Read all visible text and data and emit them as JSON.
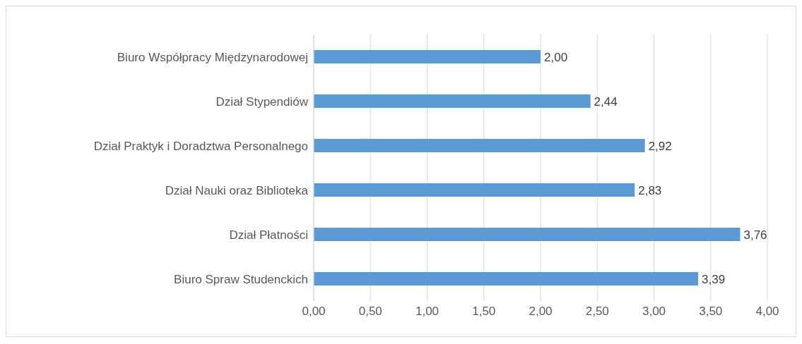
{
  "chart_data": {
    "type": "bar",
    "orientation": "horizontal",
    "categories": [
      "Biuro Współpracy Międzynarodowej",
      "Dział Stypendiów",
      "Dział Praktyk i Doradztwa Personalnego",
      "Dział Nauki oraz Biblioteka",
      "Dział Płatności",
      "Biuro Spraw Studenckich"
    ],
    "values": [
      2.0,
      2.44,
      2.92,
      2.83,
      3.76,
      3.39
    ],
    "value_labels": [
      "2,00",
      "2,44",
      "2,92",
      "2,83",
      "3,76",
      "3,39"
    ],
    "color": "#5b9bd5",
    "xlim": [
      0,
      4
    ],
    "xticks": [
      {
        "value": 0,
        "label": "0,00"
      },
      {
        "value": 0.5,
        "label": "0,50"
      },
      {
        "value": 1,
        "label": "1,00"
      },
      {
        "value": 1.5,
        "label": "1,50"
      },
      {
        "value": 2,
        "label": "2,00"
      },
      {
        "value": 2.5,
        "label": "2,50"
      },
      {
        "value": 3,
        "label": "3,00"
      },
      {
        "value": 3.5,
        "label": "3,50"
      },
      {
        "value": 4,
        "label": "4,00"
      }
    ],
    "grid": "x"
  }
}
